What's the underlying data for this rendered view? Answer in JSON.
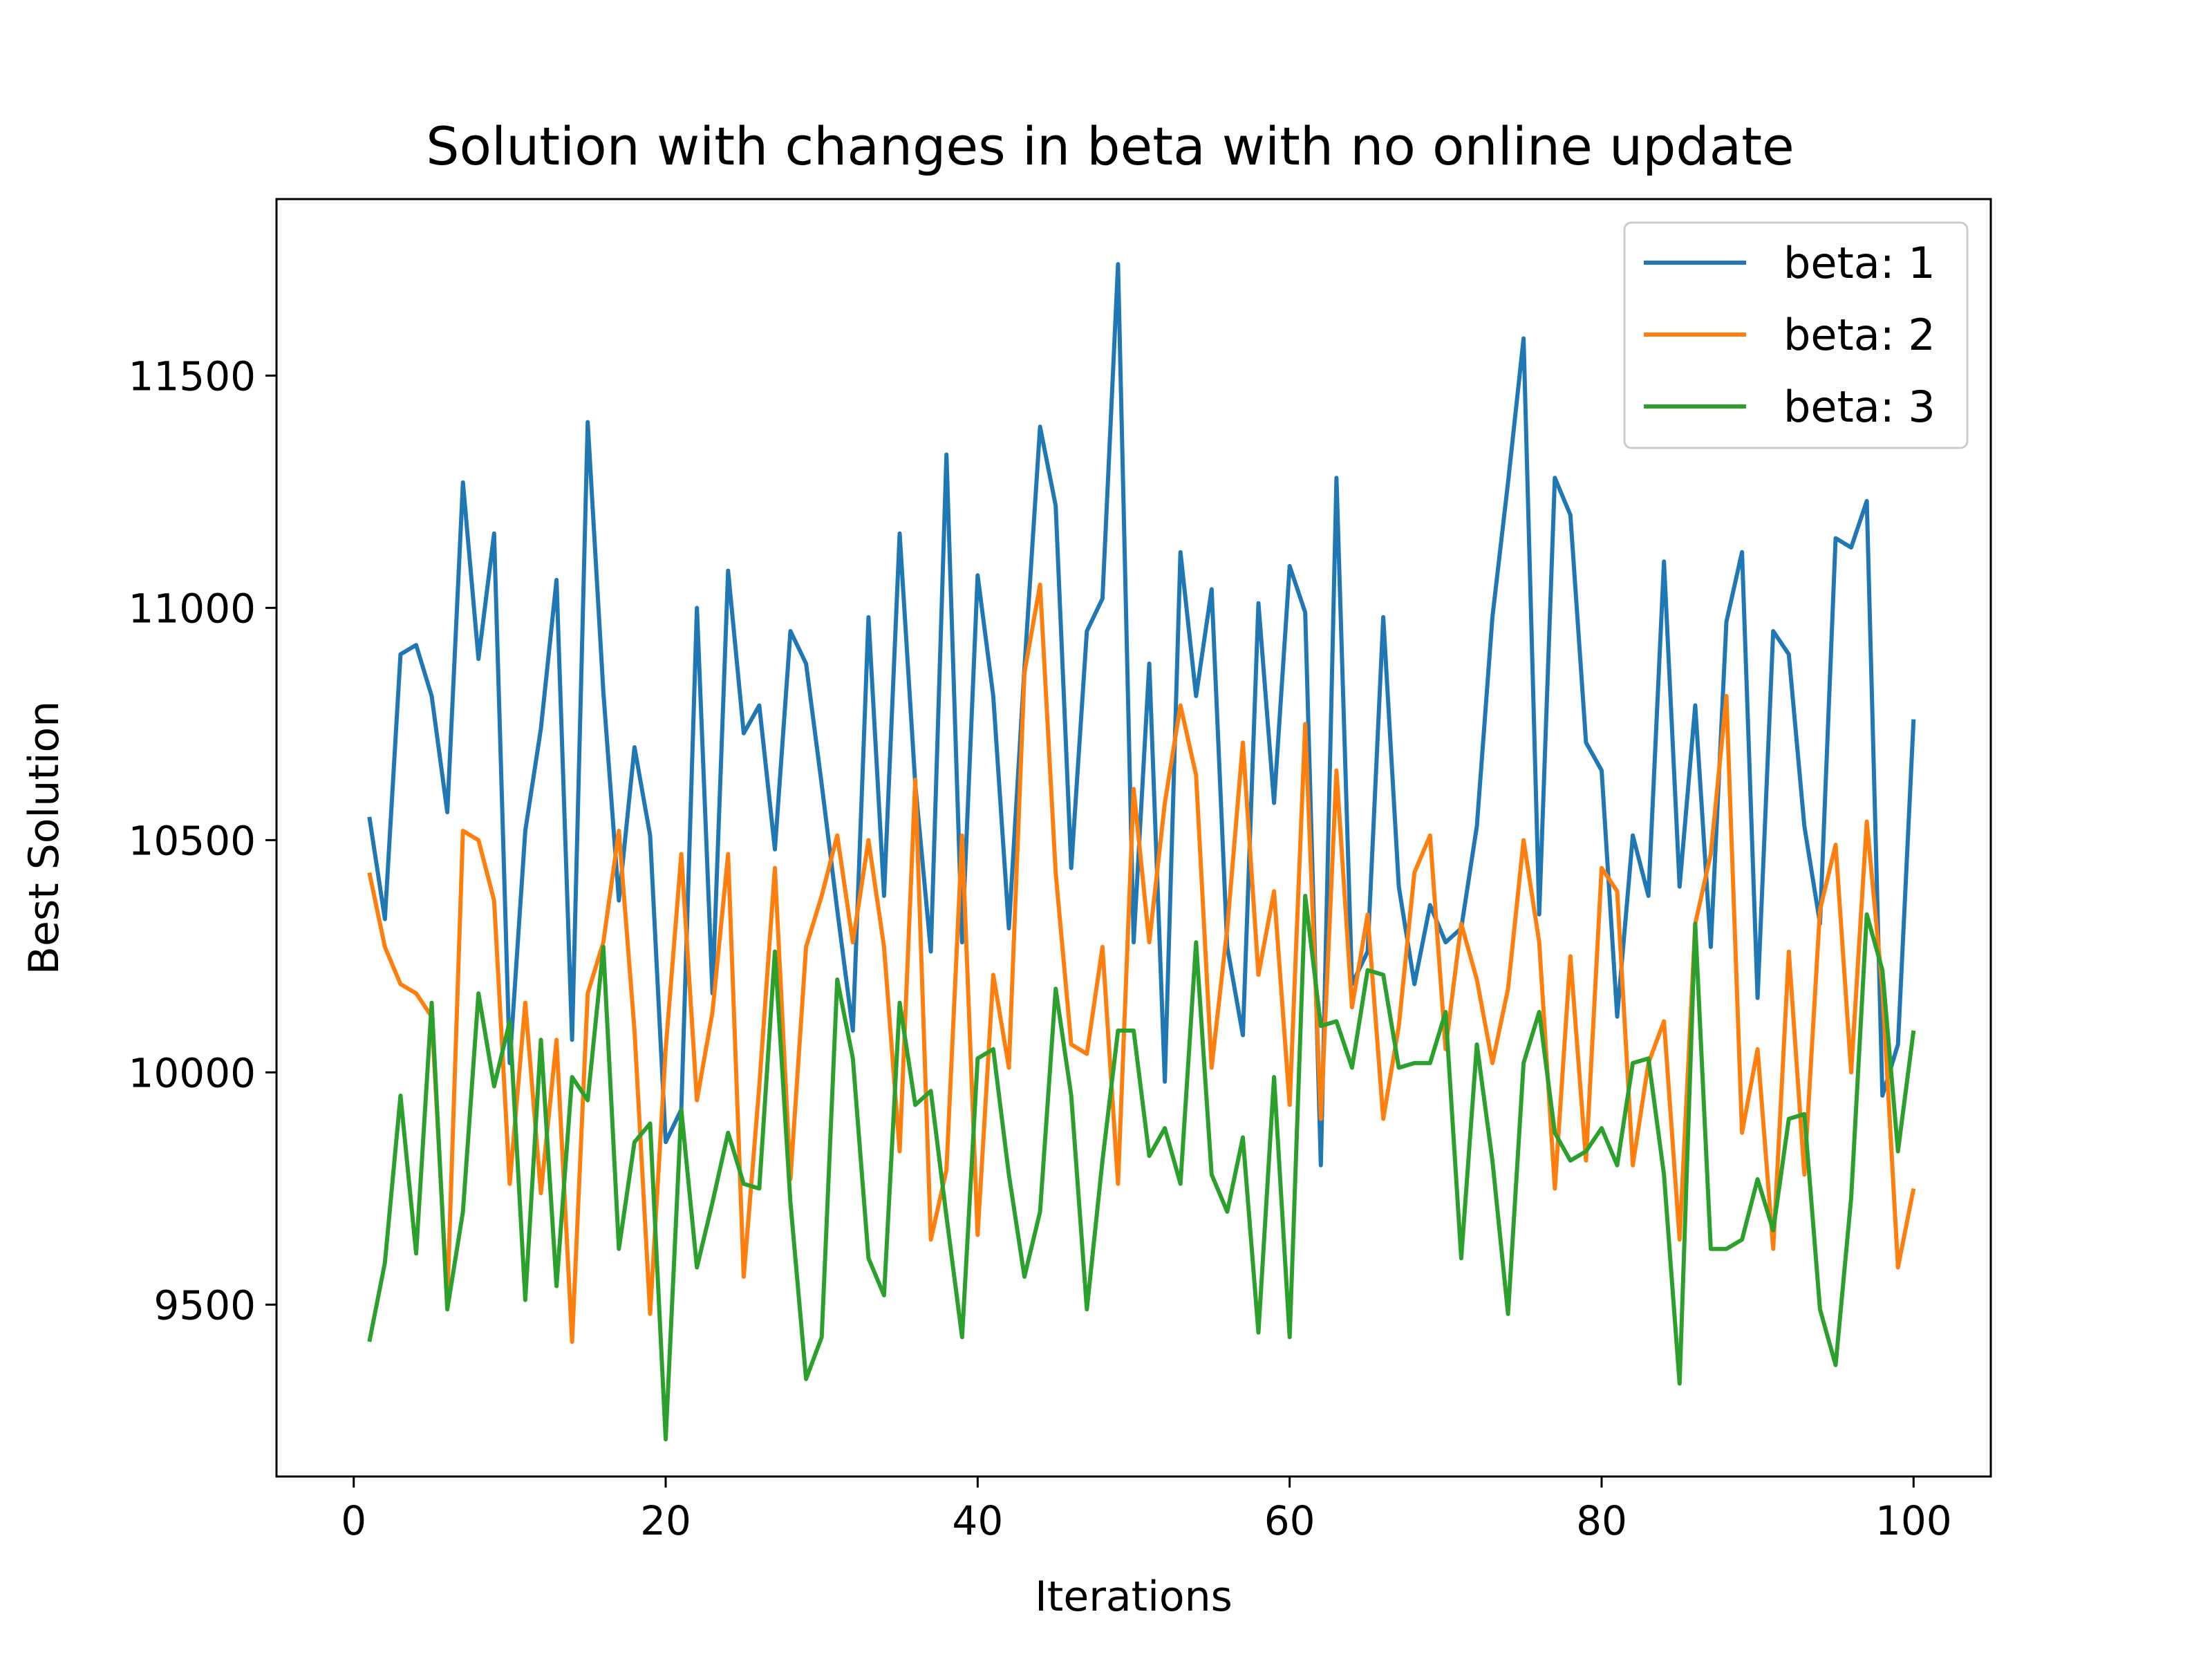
{
  "chart_data": {
    "type": "line",
    "title": "Solution with changes in beta with no online update",
    "xlabel": "Iterations",
    "ylabel": "Best Solution",
    "xlim": [
      -4.95,
      104.95
    ],
    "ylim": [
      9130,
      11880
    ],
    "xticks": [
      0,
      20,
      40,
      60,
      80,
      100
    ],
    "yticks": [
      9500,
      10000,
      10500,
      11000,
      11500
    ],
    "grid": false,
    "legend_position": "top-right",
    "series": [
      {
        "name": "beta: 1",
        "color": "#1f77b4",
        "values": [
          10550,
          10330,
          10900,
          10920,
          10810,
          10560,
          11270,
          10890,
          11160,
          10020,
          10520,
          10740,
          11060,
          10070,
          11400,
          10820,
          10370,
          10700,
          10510,
          9850,
          9920,
          11000,
          10170,
          11080,
          10730,
          10790,
          10480,
          10950,
          10880,
          10620,
          10350,
          10090,
          10980,
          10380,
          11160,
          10620,
          10260,
          11330,
          10280,
          11070,
          10810,
          10310,
          10870,
          11390,
          11220,
          10440,
          10950,
          11020,
          11740,
          10280,
          10880,
          9980,
          11120,
          10810,
          11040,
          10270,
          10080,
          11010,
          10580,
          11090,
          10990,
          9800,
          11280,
          10190,
          10260,
          10980,
          10400,
          10190,
          10360,
          10280,
          10310,
          10530,
          10980,
          11270,
          11580,
          10340,
          11280,
          11200,
          10710,
          10650,
          10120,
          10510,
          10380,
          11100,
          10400,
          10790,
          10270,
          10970,
          11120,
          10160,
          10950,
          10900,
          10530,
          10320,
          11150,
          11130,
          11230,
          9950,
          10060,
          10760
        ]
      },
      {
        "name": "beta: 2",
        "color": "#ff7f0e",
        "values": [
          10430,
          10270,
          10190,
          10170,
          10120,
          9510,
          10520,
          10500,
          10370,
          9760,
          10150,
          9740,
          10070,
          9420,
          10170,
          10280,
          10520,
          10090,
          9480,
          10050,
          10470,
          9940,
          10130,
          10470,
          9560,
          9970,
          10440,
          9770,
          10270,
          10380,
          10510,
          10280,
          10500,
          10270,
          9830,
          10630,
          9640,
          9790,
          10510,
          9650,
          10210,
          10010,
          10860,
          11050,
          10430,
          10060,
          10040,
          10270,
          9760,
          10610,
          10280,
          10580,
          10790,
          10640,
          10010,
          10310,
          10710,
          10210,
          10390,
          9930,
          10750,
          9900,
          10650,
          10140,
          10340,
          9900,
          10100,
          10430,
          10510,
          10050,
          10320,
          10200,
          10020,
          10180,
          10500,
          10280,
          9750,
          10250,
          9810,
          10440,
          10390,
          9800,
          10020,
          10110,
          9640,
          10320,
          10470,
          10810,
          9870,
          10050,
          9620,
          10260,
          9780,
          10350,
          10490,
          10000,
          10540,
          10180,
          9580,
          9750
        ]
      },
      {
        "name": "beta: 3",
        "color": "#2ca02c",
        "values": [
          9420,
          9590,
          9950,
          9610,
          10150,
          9490,
          9700,
          10170,
          9970,
          10110,
          9510,
          10070,
          9540,
          9990,
          9940,
          10270,
          9620,
          9850,
          9890,
          9210,
          9920,
          9580,
          9720,
          9870,
          9760,
          9750,
          10260,
          9720,
          9340,
          9430,
          10200,
          10030,
          9600,
          9520,
          10150,
          9930,
          9960,
          9690,
          9430,
          10030,
          10050,
          9780,
          9560,
          9700,
          10180,
          9950,
          9490,
          9810,
          10090,
          10090,
          9820,
          9880,
          9760,
          10280,
          9780,
          9700,
          9860,
          9440,
          9990,
          9430,
          10380,
          10100,
          10110,
          10010,
          10220,
          10210,
          10010,
          10020,
          10020,
          10130,
          9600,
          10060,
          9810,
          9480,
          10020,
          10130,
          9870,
          9810,
          9830,
          9880,
          9800,
          10020,
          10030,
          9780,
          9330,
          10320,
          9620,
          9620,
          9640,
          9770,
          9660,
          9900,
          9910,
          9490,
          9370,
          9730,
          10340,
          10220,
          9830,
          10090
        ]
      }
    ]
  }
}
